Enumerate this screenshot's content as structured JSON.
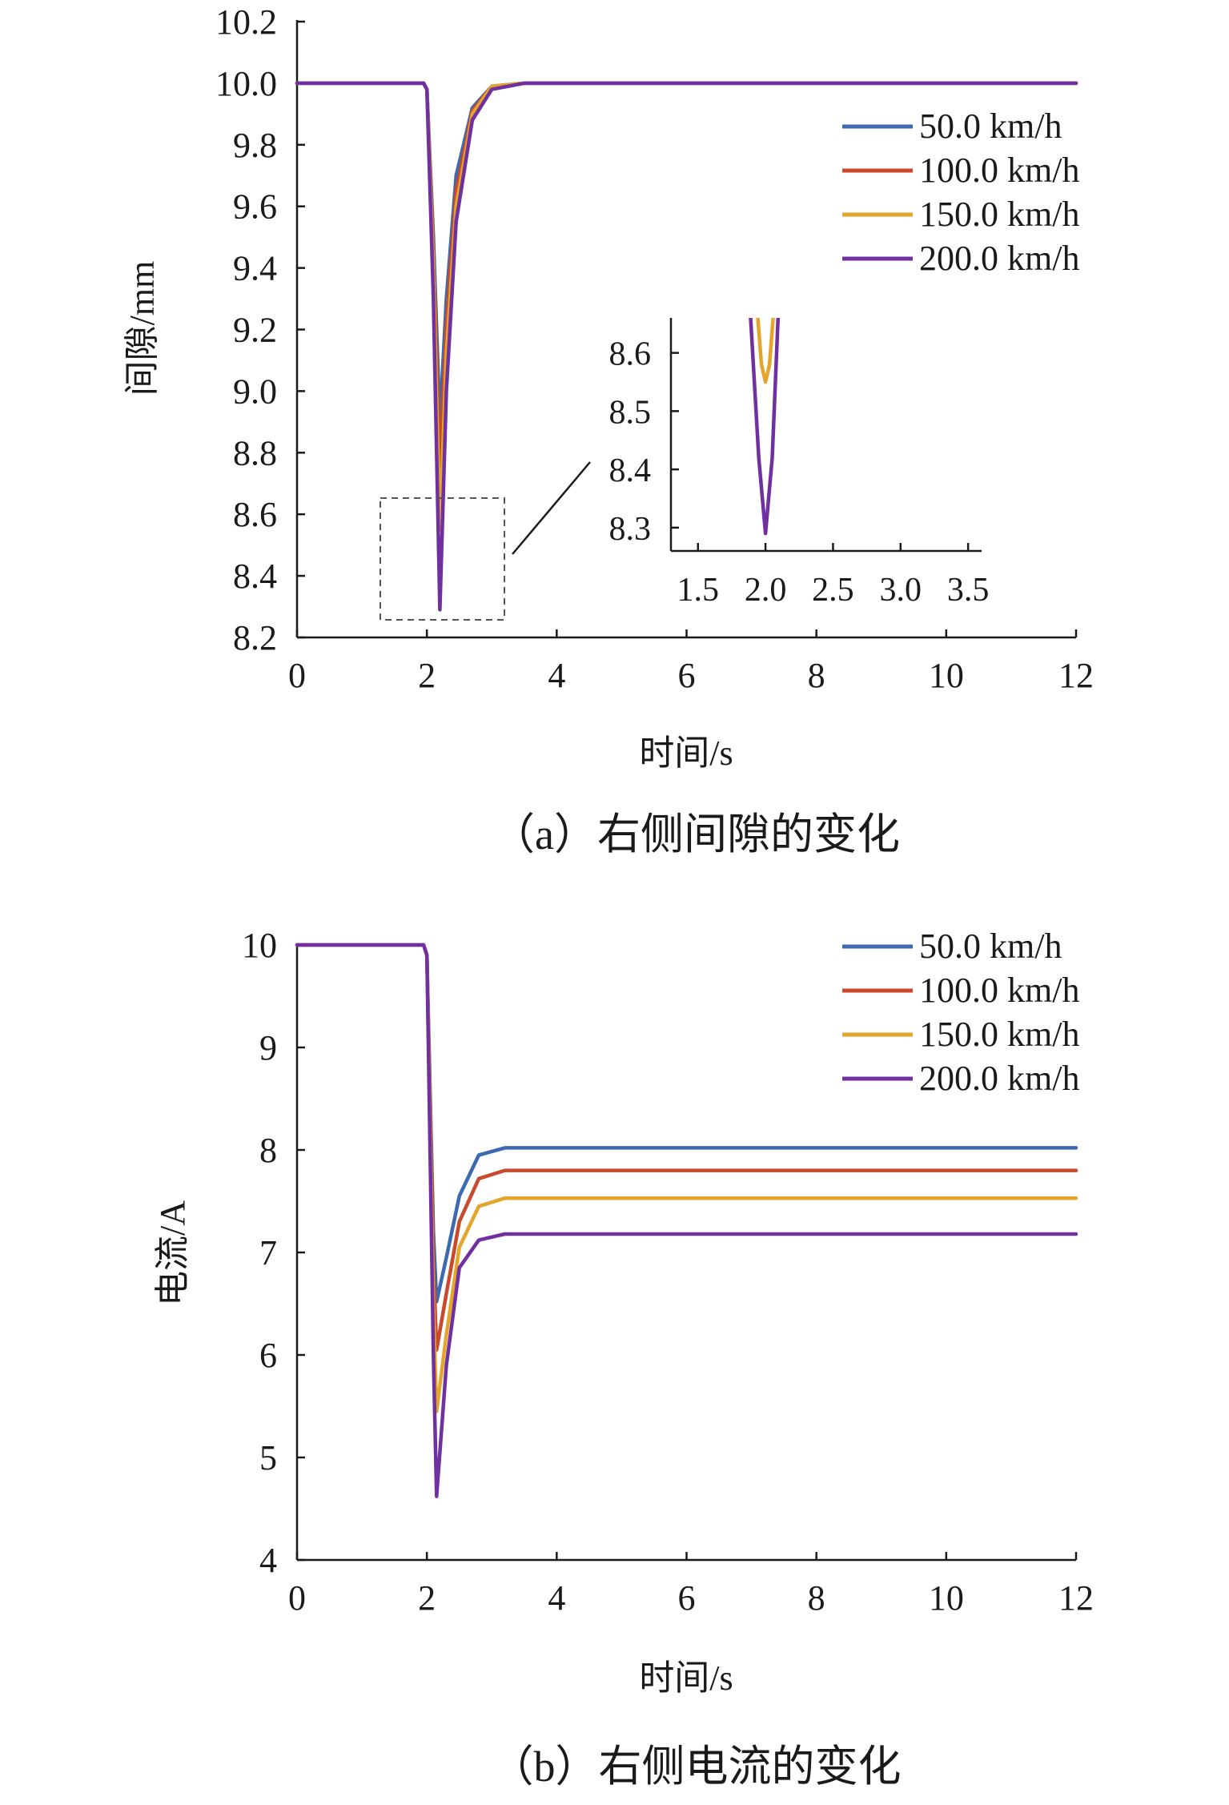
{
  "chart_data": [
    {
      "type": "line",
      "caption": "（a）右侧间隙的变化",
      "xlabel": "时间/s",
      "ylabel": "间隙/mm",
      "xlim": [
        0,
        12
      ],
      "ylim": [
        8.2,
        10.2
      ],
      "x_ticks": [
        "0",
        "2",
        "4",
        "6",
        "8",
        "10",
        "12"
      ],
      "y_ticks": [
        "8.2",
        "8.4",
        "8.6",
        "8.8",
        "9.0",
        "9.2",
        "9.4",
        "9.6",
        "9.8",
        "10.0",
        "10.2"
      ],
      "grid": false,
      "legend_position": "top-right",
      "series": [
        {
          "name": "50.0 km/h",
          "color": "#3c6ab0",
          "x": [
            0,
            1.95,
            2.0,
            2.1,
            2.2,
            2.3,
            2.45,
            2.7,
            3.0,
            3.5,
            12
          ],
          "y": [
            10.0,
            10.0,
            9.98,
            9.5,
            8.9,
            9.3,
            9.7,
            9.92,
            9.99,
            10.0,
            10.0
          ]
        },
        {
          "name": "100.0 km/h",
          "color": "#c8492b",
          "x": [
            0,
            1.95,
            2.0,
            2.1,
            2.2,
            2.3,
            2.45,
            2.7,
            3.0,
            3.5,
            12
          ],
          "y": [
            10.0,
            10.0,
            9.98,
            9.45,
            8.74,
            9.22,
            9.65,
            9.91,
            9.99,
            10.0,
            10.0
          ]
        },
        {
          "name": "150.0 km/h",
          "color": "#e3a52a",
          "x": [
            0,
            1.95,
            2.0,
            2.1,
            2.2,
            2.3,
            2.45,
            2.7,
            3.0,
            3.5,
            12
          ],
          "y": [
            10.0,
            10.0,
            9.98,
            9.4,
            8.55,
            9.12,
            9.6,
            9.9,
            9.99,
            10.0,
            10.0
          ]
        },
        {
          "name": "200.0 km/h",
          "color": "#7030a0",
          "x": [
            0,
            1.95,
            2.0,
            2.1,
            2.2,
            2.3,
            2.45,
            2.7,
            3.0,
            3.5,
            12
          ],
          "y": [
            10.0,
            10.0,
            9.98,
            9.3,
            8.29,
            9.0,
            9.55,
            9.88,
            9.98,
            10.0,
            10.0
          ]
        }
      ],
      "inset": {
        "xlim": [
          1.3,
          3.6
        ],
        "ylim": [
          8.26,
          8.66
        ],
        "x_ticks": [
          "1.5",
          "2.0",
          "2.5",
          "3.0",
          "3.5"
        ],
        "y_ticks": [
          "8.3",
          "8.4",
          "8.5",
          "8.6"
        ],
        "curves": [
          {
            "series": "150.0 km/h",
            "color": "#e3a52a",
            "x": [
              1.93,
              1.97,
              2.0,
              2.03,
              2.07
            ],
            "y": [
              8.7,
              8.58,
              8.55,
              8.58,
              8.7
            ]
          },
          {
            "series": "200.0 km/h",
            "color": "#7030a0",
            "x": [
              1.88,
              1.95,
              2.0,
              2.05,
              2.1
            ],
            "y": [
              8.7,
              8.42,
              8.29,
              8.42,
              8.7
            ]
          }
        ]
      }
    },
    {
      "type": "line",
      "caption": "（b）右侧电流的变化",
      "xlabel": "时间/s",
      "ylabel": "电流/A",
      "xlim": [
        0,
        12
      ],
      "ylim": [
        4,
        10
      ],
      "x_ticks": [
        "0",
        "2",
        "4",
        "6",
        "8",
        "10",
        "12"
      ],
      "y_ticks": [
        "4",
        "5",
        "6",
        "7",
        "8",
        "9",
        "10"
      ],
      "grid": false,
      "legend_position": "top-right",
      "series": [
        {
          "name": "50.0 km/h",
          "color": "#3c6ab0",
          "x": [
            0,
            1.95,
            2.0,
            2.1,
            2.15,
            2.3,
            2.5,
            2.8,
            3.2,
            12
          ],
          "y": [
            10.0,
            10.0,
            9.9,
            7.2,
            6.52,
            6.95,
            7.55,
            7.95,
            8.02,
            8.02
          ]
        },
        {
          "name": "100.0 km/h",
          "color": "#c8492b",
          "x": [
            0,
            1.95,
            2.0,
            2.1,
            2.15,
            2.3,
            2.5,
            2.8,
            3.2,
            12
          ],
          "y": [
            10.0,
            10.0,
            9.9,
            6.9,
            6.05,
            6.6,
            7.3,
            7.72,
            7.8,
            7.8
          ]
        },
        {
          "name": "150.0 km/h",
          "color": "#e3a52a",
          "x": [
            0,
            1.95,
            2.0,
            2.1,
            2.15,
            2.3,
            2.5,
            2.8,
            3.2,
            12
          ],
          "y": [
            10.0,
            10.0,
            9.9,
            6.5,
            5.45,
            6.2,
            7.05,
            7.45,
            7.53,
            7.53
          ]
        },
        {
          "name": "200.0 km/h",
          "color": "#7030a0",
          "x": [
            0,
            1.95,
            2.0,
            2.1,
            2.15,
            2.3,
            2.5,
            2.8,
            3.2,
            12
          ],
          "y": [
            10.0,
            10.0,
            9.9,
            6.0,
            4.62,
            5.9,
            6.85,
            7.12,
            7.18,
            7.18
          ]
        }
      ]
    }
  ]
}
